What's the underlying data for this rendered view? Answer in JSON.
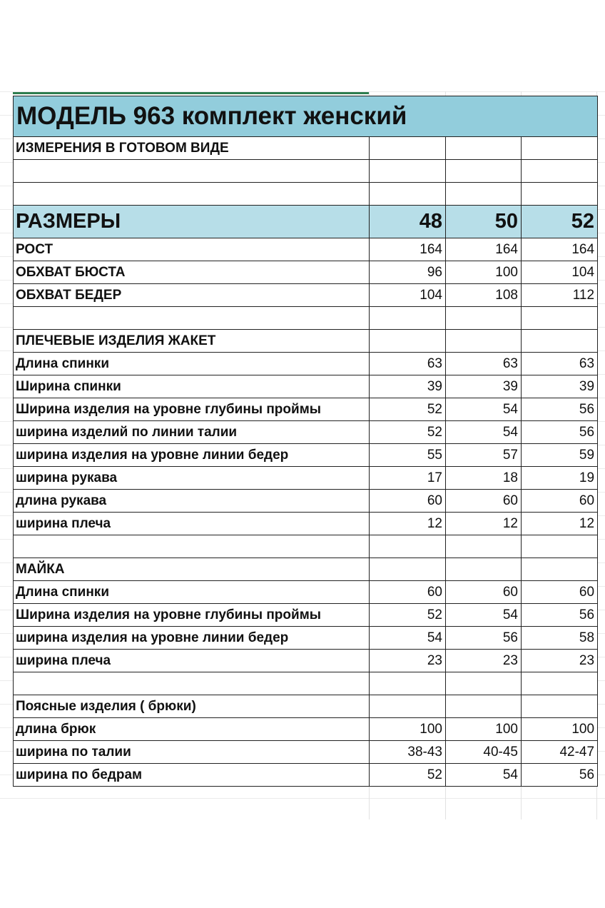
{
  "title": "МОДЕЛЬ 963 комплект женский",
  "subtitle": "ИЗМЕРЕНИЯ В ГОТОВОМ ВИДЕ",
  "header_colors": {
    "title_bg": "#92cddc",
    "sizes_bg": "#b7dee8"
  },
  "sizes_label": "РАЗМЕРЫ",
  "sizes": [
    "48",
    "50",
    "52"
  ],
  "rows": [
    {
      "label": "РОСТ",
      "values": [
        "164",
        "164",
        "164"
      ]
    },
    {
      "label": "ОБХВАТ БЮСТА",
      "values": [
        "96",
        "100",
        "104"
      ]
    },
    {
      "label": "ОБХВАТ БЕДЕР",
      "values": [
        "104",
        "108",
        "112"
      ]
    },
    {
      "label": "",
      "values": [
        "",
        "",
        ""
      ]
    },
    {
      "label": "ПЛЕЧЕВЫЕ ИЗДЕЛИЯ ЖАКЕТ",
      "values": [
        "",
        "",
        ""
      ]
    },
    {
      "label": "Длина спинки",
      "values": [
        "63",
        "63",
        "63"
      ]
    },
    {
      "label": "Ширина спинки",
      "values": [
        "39",
        "39",
        "39"
      ]
    },
    {
      "label": "Ширина изделия на уровне глубины проймы",
      "values": [
        "52",
        "54",
        "56"
      ]
    },
    {
      "label": "ширина изделий по линии талии",
      "values": [
        "52",
        "54",
        "56"
      ]
    },
    {
      "label": "ширина изделия на уровне линии бедер",
      "values": [
        "55",
        "57",
        "59"
      ]
    },
    {
      "label": "ширина рукава",
      "values": [
        "17",
        "18",
        "19"
      ]
    },
    {
      "label": "длина рукава",
      "values": [
        "60",
        "60",
        "60"
      ]
    },
    {
      "label": "ширина плеча",
      "values": [
        "12",
        "12",
        "12"
      ]
    },
    {
      "label": "",
      "values": [
        "",
        "",
        ""
      ]
    },
    {
      "label": "МАЙКА",
      "values": [
        "",
        "",
        ""
      ]
    },
    {
      "label": "Длина спинки",
      "values": [
        "60",
        "60",
        "60"
      ]
    },
    {
      "label": "Ширина изделия на уровне глубины проймы",
      "values": [
        "52",
        "54",
        "56"
      ]
    },
    {
      "label": "ширина изделия на уровне линии бедер",
      "values": [
        "54",
        "56",
        "58"
      ]
    },
    {
      "label": "ширина плеча",
      "values": [
        "23",
        "23",
        "23"
      ]
    },
    {
      "label": "",
      "values": [
        "",
        "",
        ""
      ]
    },
    {
      "label": "Поясные изделия ( брюки)",
      "values": [
        "",
        "",
        ""
      ]
    },
    {
      "label": "длина  брюк",
      "values": [
        "100",
        "100",
        "100"
      ]
    },
    {
      "label": "ширина   по талии",
      "values": [
        "38-43",
        "40-45",
        "42-47"
      ]
    },
    {
      "label": "ширина по бедрам",
      "values": [
        "52",
        "54",
        "56"
      ]
    }
  ]
}
